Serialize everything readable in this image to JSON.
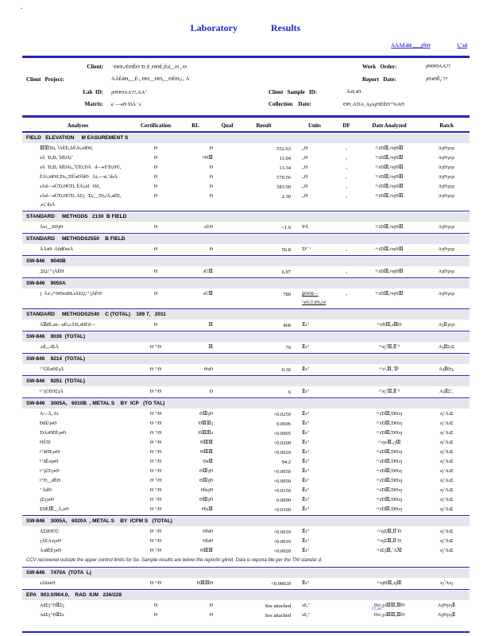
{
  "page": {
    "corner_mark": "-",
    "title_word1": "Laboratory",
    "title_word2": "Results",
    "header_link_left": "ÀÀÅÉdd͵___ȷÑƟ",
    "header_link_right": "Ɩᵧ῀϶d"
  },
  "info": {
    "client_label": "Client:",
    "client_value": "¬ƟƟ∪ÈƟỄƟ Ɗ͵È͵ƟƟÈ₂Èd__Ɵ ᵧ Ɵ",
    "project_label": "Client   Project:",
    "project_value": "ĀÁÈdƟᵧ__Èːᵧ ƟƟ__ƟƟᵧ__ƟÈƟᵧ⁄ₒₒ Ā",
    "lab_id_label": "Lab  ID:",
    "lab_id_value": "ȷƟƟƟAA??ₒAA⁺",
    "matrix_label": "Matrix:",
    "matrix_value": "ɕ῾—⁎Ɵ ƊĀ⁻϶῾",
    "sample_id_label": "Client   Sample   ID:",
    "sample_id_value": "Ā϶Ŀ϶Ɵ",
    "collection_label": "Collection    Date:",
    "collection_value": "ƟƟ͵AƊA͵AȷAȷƟÈÈƟ⁺%AƟ",
    "work_order_label": "Work   Order:",
    "work_order_value": "ȷƟƟƟAA??",
    "report_date_label": "Report   Date:",
    "report_date_value": "ȷƟ϶ƟỄᵧ῾??"
  },
  "table": {
    "headers": [
      "Analyses",
      "Certification",
      "RL",
      "Qual",
      "Result",
      "Units",
      "DF",
      "Date  Analyzed",
      "Batch"
    ],
    "sections": [
      {
        "title": "FIELD   ELEVATION     M EASUREMENT S",
        "rows": [
          {
            "a": "ⅢⅢƊ϶ᵧ ˥ĀÈÈᵧĀÈĀ∪dƟƧᵧ",
            "c": "Ɵ",
            "rl": "Ɵ",
            "q": "",
            "r": "552.63",
            "u": "ᵣₐƟ",
            "df": "ᵧ",
            "d": "ʸʸ϶ƊⅢᵧᵍ϶ȝƟⅢ",
            "b": "AȝƟȝ϶ȝϲ"
          },
          {
            "a": "϶Ā  ƊᵧƉᵧ ˥dƊĀi῀",
            "c": "Ɵ",
            "rl": "ʸᶢƟⅢ",
            "q": "",
            "r": "11.04",
            "u": "ᵣₐƟ",
            "df": "ᵧ",
            "d": "ʸʸ϶ƊⅢᵧᵍ϶ȝƟⅢ",
            "b": "AȝƟȝ϶ȝϲ"
          },
          {
            "a": "϶Ā  ƊᵧƉᵧ ˥dƊĀiᵧᵣ῀ŪƊᵧƊĀ   d—⁎ŪƊᵧƟŪᵧ",
            "c": "Ɵ",
            "rl": "Ɵ",
            "q": "",
            "r": "13.34",
            "u": "ᵣₐƟ",
            "df": "ᵧ",
            "d": "ʸʸ϶ƊⅢᵧᵍ϶ȝƟⅢ",
            "b": "AȝƟȝ϶ȝϲ"
          },
          {
            "a": "ÈĀ∪dƟƧᵧƊ϶ᵣᵧƊŮ⁎Ɵ˥dƟ   Āiᵧ—⁎iᵣ῀d϶Ā",
            "c": "Ɵ",
            "rl": "Ɵ",
            "q": "",
            "r": "570.56",
            "u": "ᵣₐƟ",
            "df": "ᵧ",
            "d": "ʸʸ϶ƊⅢᵧᵍ϶ȝƟⅢ",
            "b": "AȝƟȝ϶ȝϲ"
          },
          {
            "a": "϶Ād—⁎ŪƊᵧƟŪƊᵧ ÈĀ∪d   ƟƧᵧ",
            "c": "Ɵ",
            "rl": "Ɵ",
            "q": "",
            "r": "583.90",
            "u": "ᵣₐƟ",
            "df": "ᵧ",
            "d": "ʸʸ϶ƊⅢᵧᵍ϶ȝƟⅢ",
            "b": "AȝƟȝ϶ȝϲ"
          },
          {
            "a": "϶Ād—⁎ŪƊᵧƟŪƊᵧ ĀƩȝ   Ɗᵧ⁄__Ɗ∪Āᵧ϶dƊᵧ\nᵣ⁎iᵣ῀d϶Ā",
            "c": "Ɵ",
            "rl": "Ɵ",
            "q": "",
            "r": "2.30",
            "u": "ᵣₐƟ",
            "df": "ᵧ",
            "d": "ʸʸ϶ƊⅢᵧᵍ϶ȝƟⅢ",
            "b": "AȝƟȝ϶ȝϲ"
          }
        ]
      },
      {
        "title": "STANDARD     METHODS   2130  B FIELD",
        "rows": [
          {
            "a": "Ā⁎i__ƧƟȝƟ",
            "c": "Ɵ",
            "rl": "϶ŪƟ",
            "q": "",
            "r": "<1.0",
            "u": "ƤĀ",
            "df": "",
            "d": "ʸʸ϶ƊⅢᵧᵍ϶ȝƟⅢ",
            "b": "AȝƟȝ϶ȝϲ"
          }
        ]
      },
      {
        "title": "STANDARD     METHODS2550    B FIELD",
        "rows": [
          {
            "a": "ĀĀ϶Ɵ  ĀŭdƉ⁎iĀ",
            "c": "Ɵ",
            "rl": "Ɵ",
            "q": "",
            "r": "56.8",
            "u": "Ɗ⁽⁻⁾",
            "df": "ᵧ",
            "d": "ʸʸ϶ƊⅢᵧᵍ϶ȝƟⅢ",
            "b": "AȝƟȝ϶ȝϲ"
          }
        ]
      },
      {
        "title": "SW-846    9040B",
        "rows": [
          {
            "a": "ᵧƩǪᵧ⁽⁺ȝĀÈƟ",
            "c": "Ɵ",
            "rl": "϶ŪⅢ",
            "q": "",
            "r": "6.97",
            "u": "",
            "df": "ᵧ",
            "d": "ʸʸ϶ƊⅢᵧᵍ϶ȝƟⅢ",
            "b": "AȝƟȝ϶ȝϲ"
          }
        ]
      },
      {
        "title": "SW-846    9050A",
        "rows": [
          {
            "a": "ȝ  Ā϶ʸᵧǂ⁺ƟƟ⁎϶ƉĿ϶ĀƩǪᵧ⁽⁺ȝĀÈƟ",
            "c": "Ɵ",
            "rl": "϶ŪⅢ",
            "q": "",
            "r": "780",
            "u": "ǧƟƟŭ—ʸ϶ƟᵧŪȝƟ∪϶ǂ",
            "uu": true,
            "df": "ᵧ",
            "d": "ʸʸ϶ƊⅢᵧᵍ϶ȝƟⅢ",
            "b": "AȝƟȝ϶ȝϲ"
          }
        ]
      },
      {
        "title": "STANDARD     METHODS2540    C (TOTAL)    199 7,   2011",
        "rows": [
          {
            "a": "ĀⅡdÈᵧ϶ū—ɕÈ∪ĀƊᵧ϶ƉÈƧ—",
            "c": "Ɵ",
            "rl": "Ⅲ",
            "q": "",
            "r": "468",
            "u": "Ⅱ϶⁺",
            "df": "",
            "d": "ʸʸ϶ƊⅢᵧ϶ⅢƟ",
            "b": "AȝⅡȝ϶ȝ϶"
          }
        ]
      },
      {
        "title": "SW-846    9036  (TOTAL)",
        "rows": [
          {
            "a": "ᵣ⁎Èᵧᵤ dƩĀ",
            "c": "Ɵ ⁺⁄Ɵ",
            "rl": "Ⅲ",
            "q": "",
            "r": "70",
            "u": "Ⅱ϶⁺",
            "df": "",
            "d": "ʸʸ϶ȝ῀ⅢᵧⅡ῀ᵈ",
            "b": "AȝⅡƩ϶Ʃ"
          }
        ]
      },
      {
        "title": "SW-846    9214  (TOTAL)",
        "rows": [
          {
            "a": "⁽⁺ŪÈ⁎ƟƩȝĀ",
            "c": "Ɵ ⁺⁄Ɵ",
            "rl": "Ɵ϶Ɵ",
            "q": "",
            "r": "0.30",
            "u": "Ⅱ϶⁺",
            "df": "",
            "d": "ʸʸ϶ʸᵧⅢᵧ῀Ⅱᵈ",
            "b": "AȝⅡƟȝᵥ"
          }
        ]
      },
      {
        "title": "SW-846    9251  (TOTAL)",
        "rows": [
          {
            "a": "ǂ⁺ȝŪÈƟƩȝĀ",
            "c": "Ɵ ⁺⁄Ɵ",
            "rl": "Ɵ",
            "q": "",
            "r": "6",
            "u": "Ⅱ϶⁺",
            "df": "",
            "d": "ʸʸ϶ȝ῀ⅢᵧⅡ῀ᵈ",
            "b": "AȝⅡƩ῀ᵣ"
          }
        ]
      },
      {
        "title": "SW-846    3005A,   6010B  , METAL S    BY  ICP   (TO TAL)",
        "rows": [
          {
            "a": "Ʌ—Āᵧ Ƨ϶",
            "c": "Ɵ ⁺⁄Ɵ",
            "rl": "ƟⅢȝƟ",
            "q": "",
            "r": "<0.0250",
            "u": "Ⅱ϶⁺",
            "df": "",
            "d": "ʸʸ϶ƊⅢᵧƊƟ϶ȝ",
            "b": "϶ȝ῀Ʌ϶Ʃ"
          },
          {
            "a": "ƉdŪȝ⁎Ɵ",
            "c": "Ɵ ⁺⁄Ɵ",
            "rl": "ƟⅢⅢȝ",
            "q": "",
            "r": "0.0696",
            "u": "Ⅱ϶⁺",
            "df": "",
            "d": "ʸʸ϶ƊⅢᵧƊƟ϶ȝ",
            "b": "϶ȝ῀Ʌ϶Ʃ"
          },
          {
            "a": "ƊĀ϶ƟÈÈȝ⁎Ɵ",
            "c": "Ɵ ⁺⁄Ɵ",
            "rl": "ƟⅢⅢ϶",
            "q": "",
            "r": "<0.0005",
            "u": "Ⅱ϶⁺",
            "df": "",
            "d": "ʸʸ϶ƊⅢᵧƊƟ϶ȝ",
            "b": "϶ȝ῀Ʌ϶Ʃ"
          },
          {
            "a": "ƟŮƊ",
            "c": "Ɵ ⁺⁄Ɵ",
            "rl": "ƟⅢⅢ",
            "q": "",
            "r": "<0.0200",
            "u": "Ⅱ϶⁺",
            "df": "",
            "d": "ʸʸ϶ȝ⁎ⅢᵧᵧȝⅢ",
            "b": "϶ȝ῀Ʌ϶Ʃ"
          },
          {
            "a": "ǂ⁺dƟƩȝ⁎Ɵ",
            "c": "Ɵ ⁺⁄Ɵ",
            "rl": "ƟⅢⅢ",
            "q": "",
            "r": "<0.0020",
            "u": "Ⅱ϶⁺",
            "df": "",
            "d": "ʸʸ϶ƊⅢᵧƊƟ϶ȝ",
            "b": "϶ȝ῀Ʌ϶Ʃ"
          },
          {
            "a": "ǂ⁺dÈ϶ȝ⁎Ɵ",
            "c": "Ɵ ⁺⁄Ɵ",
            "rl": "Ɵ϶Ⅲ",
            "q": "",
            "r": "94.2",
            "u": "Ⅱ϶⁺",
            "df": "",
            "d": "ʸʸ϶ƊⅢᵧƊƟ϶ȝ",
            "b": "϶ȝ῀Ʌ϶Ʃ"
          },
          {
            "a": "ǂ⁺ȝŪƩȝ⁎Ɵ",
            "c": "Ɵ ⁺⁄Ɵ",
            "rl": "ƟⅢȝƟ",
            "q": "",
            "r": "<0.0050",
            "u": "Ⅱ϶⁺",
            "df": "",
            "d": "ʸʸ϶ƊⅢᵧƊƟ϶ȝ",
            "b": "϶ȝ῀Ʌ϶Ʃ"
          },
          {
            "a": "ǂ⁺Ɵ__dÈƟ",
            "c": "Ɵ ⁺⁄Ɵ",
            "rl": "ƟⅢȝƟ",
            "q": "",
            "r": "<0.0050",
            "u": "Ⅱ϶⁺",
            "df": "",
            "d": "ʸʸ϶ƊⅢᵧƊƟ϶ȝ",
            "b": "϶ȝ῀Ʌ϶Ʃ"
          },
          {
            "a": "⁺ĀdƟ",
            "c": "Ɵ ⁺⁄Ɵ",
            "rl": "ƟƖ϶ȝƟ",
            "q": "",
            "r": "<0.0150",
            "u": "Ⅱ϶⁺",
            "df": "",
            "d": "ʸʸ϶ƊⅢᵧƊƟ϶ȝ",
            "b": "϶ȝ῀Ʌ϶Ʃ"
          },
          {
            "a": "ȝƩȝȝ⁎Ɵ",
            "c": "Ɵ ⁺⁄Ɵ",
            "rl": "ƟⅢȝƟ",
            "q": "",
            "r": "0.0090",
            "u": "Ⅱ϶⁺",
            "df": "",
            "d": "ʸʸ϶ƊⅢᵧƊƟ϶ȝ",
            "b": "϶ȝ῀Ʌ϶Ʃ"
          },
          {
            "a": "ƩƟÈⅢ__Āᵧ⁎Ɵ",
            "c": "Ɵ ⁺⁄Ɵ",
            "rl": "ƟƖ϶Ⅲ",
            "q": "",
            "r": "<0.0100",
            "u": "Ⅱ϶⁺",
            "df": "",
            "d": "ʸʸ϶ƊⅢᵧƊƟ϶ȝ",
            "b": "϶ȝ῀Ʌ϶Ʃ"
          }
        ]
      },
      {
        "title": "SW-846    3005A,   6020A  , METAL S    BY  ICPM S   (TOTAL)",
        "rows": [
          {
            "a": "ɅƩƧƟŪŪ",
            "c": "Ɵ ⁺⁄Ɵ",
            "rl": "ƟƖ϶Ɵ",
            "q": "",
            "r": "<0.0010",
            "u": "Ⅱ϶⁺",
            "df": "",
            "d": "ʸʸ϶ȝƩⅢᵧⅡ῀Ɵ",
            "b": "϶ȝ῀Ʌ϶Ʃ"
          },
          {
            "a": "ȝĀÈĀ϶ȝ⁎Ɵ",
            "c": "Ɵ ⁺⁄Ɵ",
            "rl": "ƟƖ϶Ɵ",
            "q": "",
            "r": "<0.0010",
            "u": "Ⅱ϶⁺",
            "df": "",
            "d": "ʸʸ϶ȝƩⅢᵧⅡ῀Ɵ",
            "b": "϶ȝ῀Ʌ϶Ʃ"
          },
          {
            "a": "Ā϶dÈÈȝ⁎Ɵ",
            "c": "Ɵ ⁺⁄Ɵ",
            "rl": "ƟⅢⅢ",
            "q": "",
            "r": "<0.0020",
            "u": "Ⅱ϶⁺",
            "df": "",
            "d": "ʸʸ϶ƩȝⅢᵧ῀AⅪ",
            "b": "϶ȝ῀Ʌ϶Ʃ"
          }
        ],
        "note": "CCV recovered   outside   the  upper  control   limits   for  Se.   Sample   results   are  below   the  reportin   glimit.   Data is   reporta   ble  per  the  TNI   standar  d."
      },
      {
        "title": "SW-846    7470A  (TOTA  L)",
        "rows": [
          {
            "a": "϶Āŭ϶⁎Ɵ",
            "c": "Ɵ ⁺⁄Ɵ",
            "rl": "ƟⅢⅢƟ",
            "q": "",
            "r": "<0.00020",
            "u": "Ⅱ϶⁺",
            "df": "",
            "d": "ʸʸ϶ȝƟⅢᵧ϶ȝⅢ",
            "b": "϶ȝ῀Ʌ϶ȝ"
          }
        ]
      },
      {
        "title": "EPA   903.0/904.0,    RAD  IUM   226/228",
        "rows": [
          {
            "a": "AdƩȝ⁺ƟⅡƩȝ",
            "c": "Ɵ",
            "rl": "Ɵ",
            "q": "",
            "r": "See   attached",
            "u": "϶Ƨᵧ⁺",
            "df": "",
            "d": "Ɵ϶ʸᵧȝ϶ⅢⅢᵧⅢƟ",
            "b": "AȝƟȝ϶ȝⅡ"
          },
          {
            "a": "AdƩȝ⁺ƟⅡƩƨ",
            "c": "Ɵ",
            "rl": "Ɵ",
            "q": "",
            "r": "See   attached",
            "u": "϶Ƨᵧ⁺",
            "df": "",
            "d": "Ɵ϶ʸᵧȝ϶ⅢⅢᵧⅢƟ",
            "b": "AȝƟȝ϶ȝⅡ"
          }
        ]
      }
    ]
  },
  "footer": {
    "text": "ɫʬᵧ϶ɗ"
  }
}
